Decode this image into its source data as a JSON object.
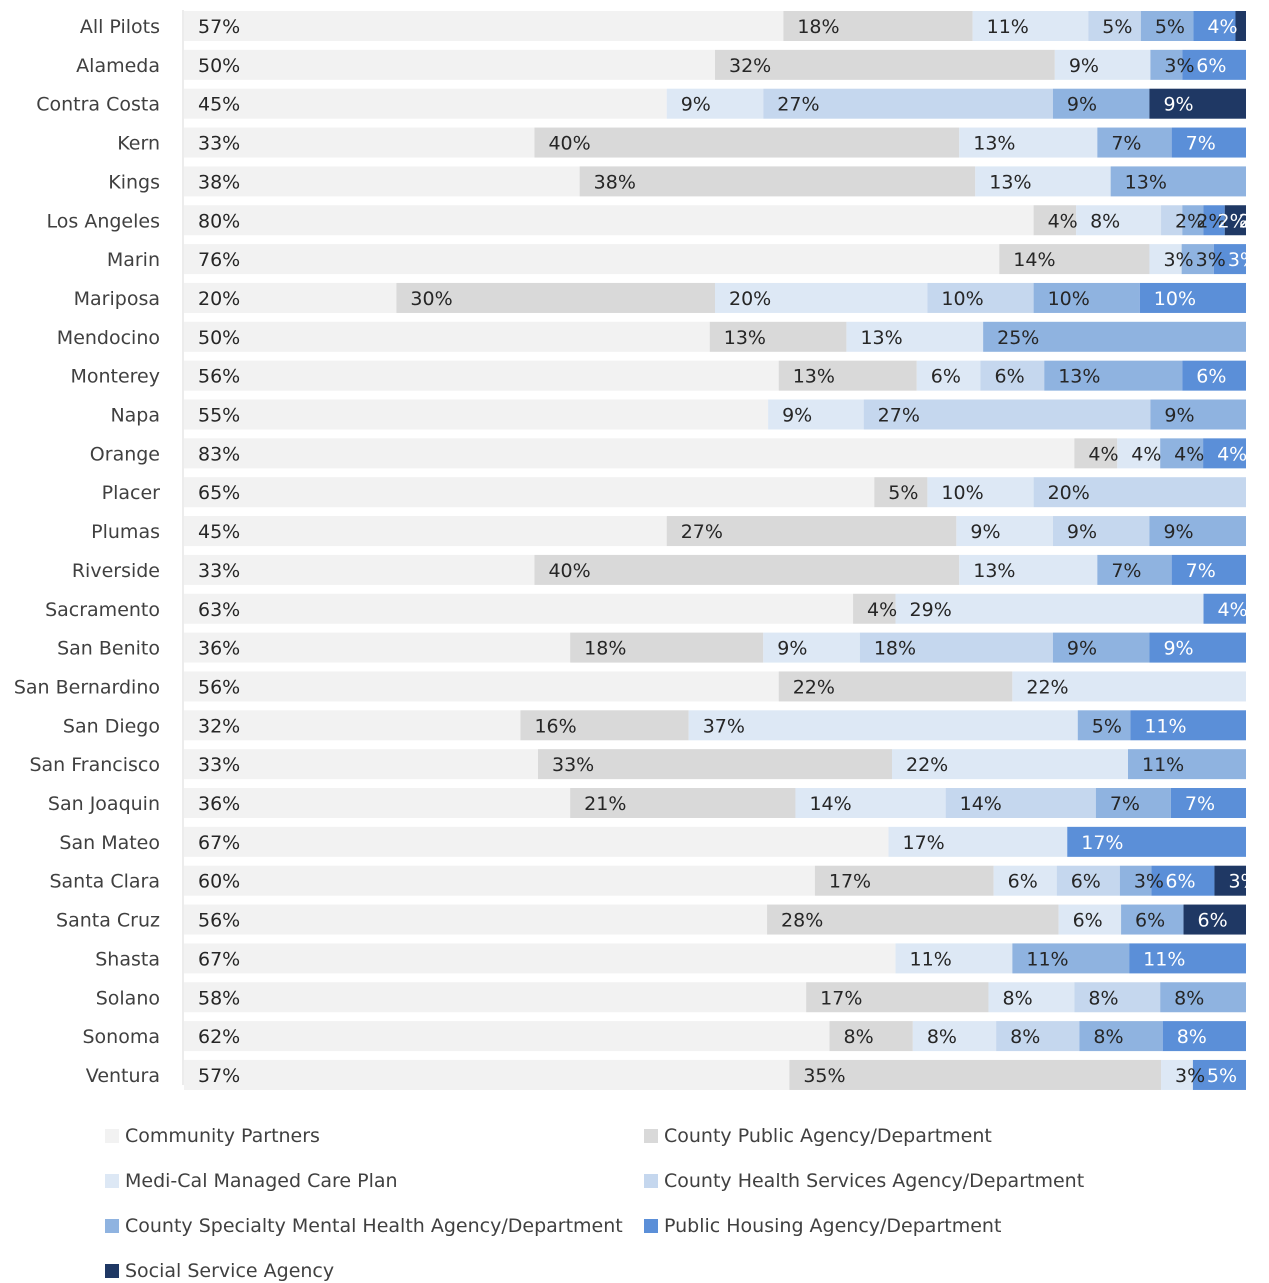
{
  "chart_data": {
    "type": "bar",
    "orientation": "horizontal",
    "stacked": true,
    "percent_stacked": true,
    "grid": false,
    "legend_position": "bottom",
    "categories": [
      "All Pilots",
      "Alameda",
      "Contra Costa",
      "Kern",
      "Kings",
      "Los Angeles",
      "Marin",
      "Mariposa",
      "Mendocino",
      "Monterey",
      "Napa",
      "Orange",
      "Placer",
      "Plumas",
      "Riverside",
      "Sacramento",
      "San Benito",
      "San Bernardino",
      "San Diego",
      "San Francisco",
      "San Joaquin",
      "San Mateo",
      "Santa Clara",
      "Santa Cruz",
      "Shasta",
      "Solano",
      "Sonoma",
      "Ventura"
    ],
    "series": [
      {
        "name": "Community Partners",
        "color": "#f2f2f2",
        "label_color": "#262626",
        "values": [
          57,
          50,
          45,
          33,
          38,
          80,
          76,
          20,
          50,
          56,
          55,
          83,
          65,
          45,
          33,
          63,
          36,
          56,
          32,
          33,
          36,
          67,
          60,
          56,
          67,
          58,
          62,
          57
        ]
      },
      {
        "name": "County Public Agency/Department",
        "color": "#d9d9d9",
        "label_color": "#262626",
        "values": [
          18,
          32,
          0,
          40,
          38,
          4,
          14,
          30,
          13,
          13,
          0,
          4,
          5,
          27,
          40,
          4,
          18,
          22,
          16,
          33,
          21,
          0,
          17,
          28,
          0,
          17,
          8,
          35
        ]
      },
      {
        "name": "Medi-Cal Managed Care Plan",
        "color": "#dde8f5",
        "label_color": "#262626",
        "values": [
          11,
          9,
          9,
          13,
          13,
          8,
          3,
          20,
          13,
          6,
          9,
          4,
          10,
          9,
          13,
          29,
          9,
          22,
          37,
          22,
          14,
          17,
          6,
          6,
          11,
          8,
          8,
          3
        ]
      },
      {
        "name": "County Health Services Agency/Department",
        "color": "#c5d7ee",
        "label_color": "#262626",
        "values": [
          5,
          0,
          27,
          0,
          0,
          2,
          0,
          10,
          0,
          6,
          27,
          0,
          20,
          9,
          0,
          0,
          18,
          0,
          0,
          0,
          14,
          0,
          6,
          0,
          0,
          8,
          8,
          0
        ]
      },
      {
        "name": "County Specialty Mental Health Agency/Department",
        "color": "#8fb3e0",
        "label_color": "#262626",
        "values": [
          5,
          3,
          9,
          7,
          13,
          2,
          3,
          10,
          25,
          13,
          9,
          4,
          0,
          9,
          7,
          0,
          9,
          0,
          5,
          11,
          7,
          0,
          3,
          6,
          11,
          8,
          8,
          0
        ]
      },
      {
        "name": "Public Housing Agency/Department",
        "color": "#5b8fd8",
        "label_color": "#ffffff",
        "values": [
          4,
          6,
          0,
          7,
          0,
          2,
          3,
          10,
          0,
          6,
          0,
          4,
          0,
          0,
          7,
          4,
          9,
          0,
          11,
          0,
          7,
          17,
          6,
          0,
          11,
          0,
          8,
          5
        ]
      },
      {
        "name": "Social Service Agency",
        "color": "#1f3864",
        "label_color": "#ffffff",
        "values": [
          1,
          0,
          9,
          0,
          0,
          2,
          0,
          0,
          0,
          0,
          0,
          0,
          0,
          0,
          0,
          0,
          0,
          0,
          0,
          0,
          0,
          0,
          3,
          6,
          0,
          0,
          0,
          0
        ]
      }
    ]
  }
}
